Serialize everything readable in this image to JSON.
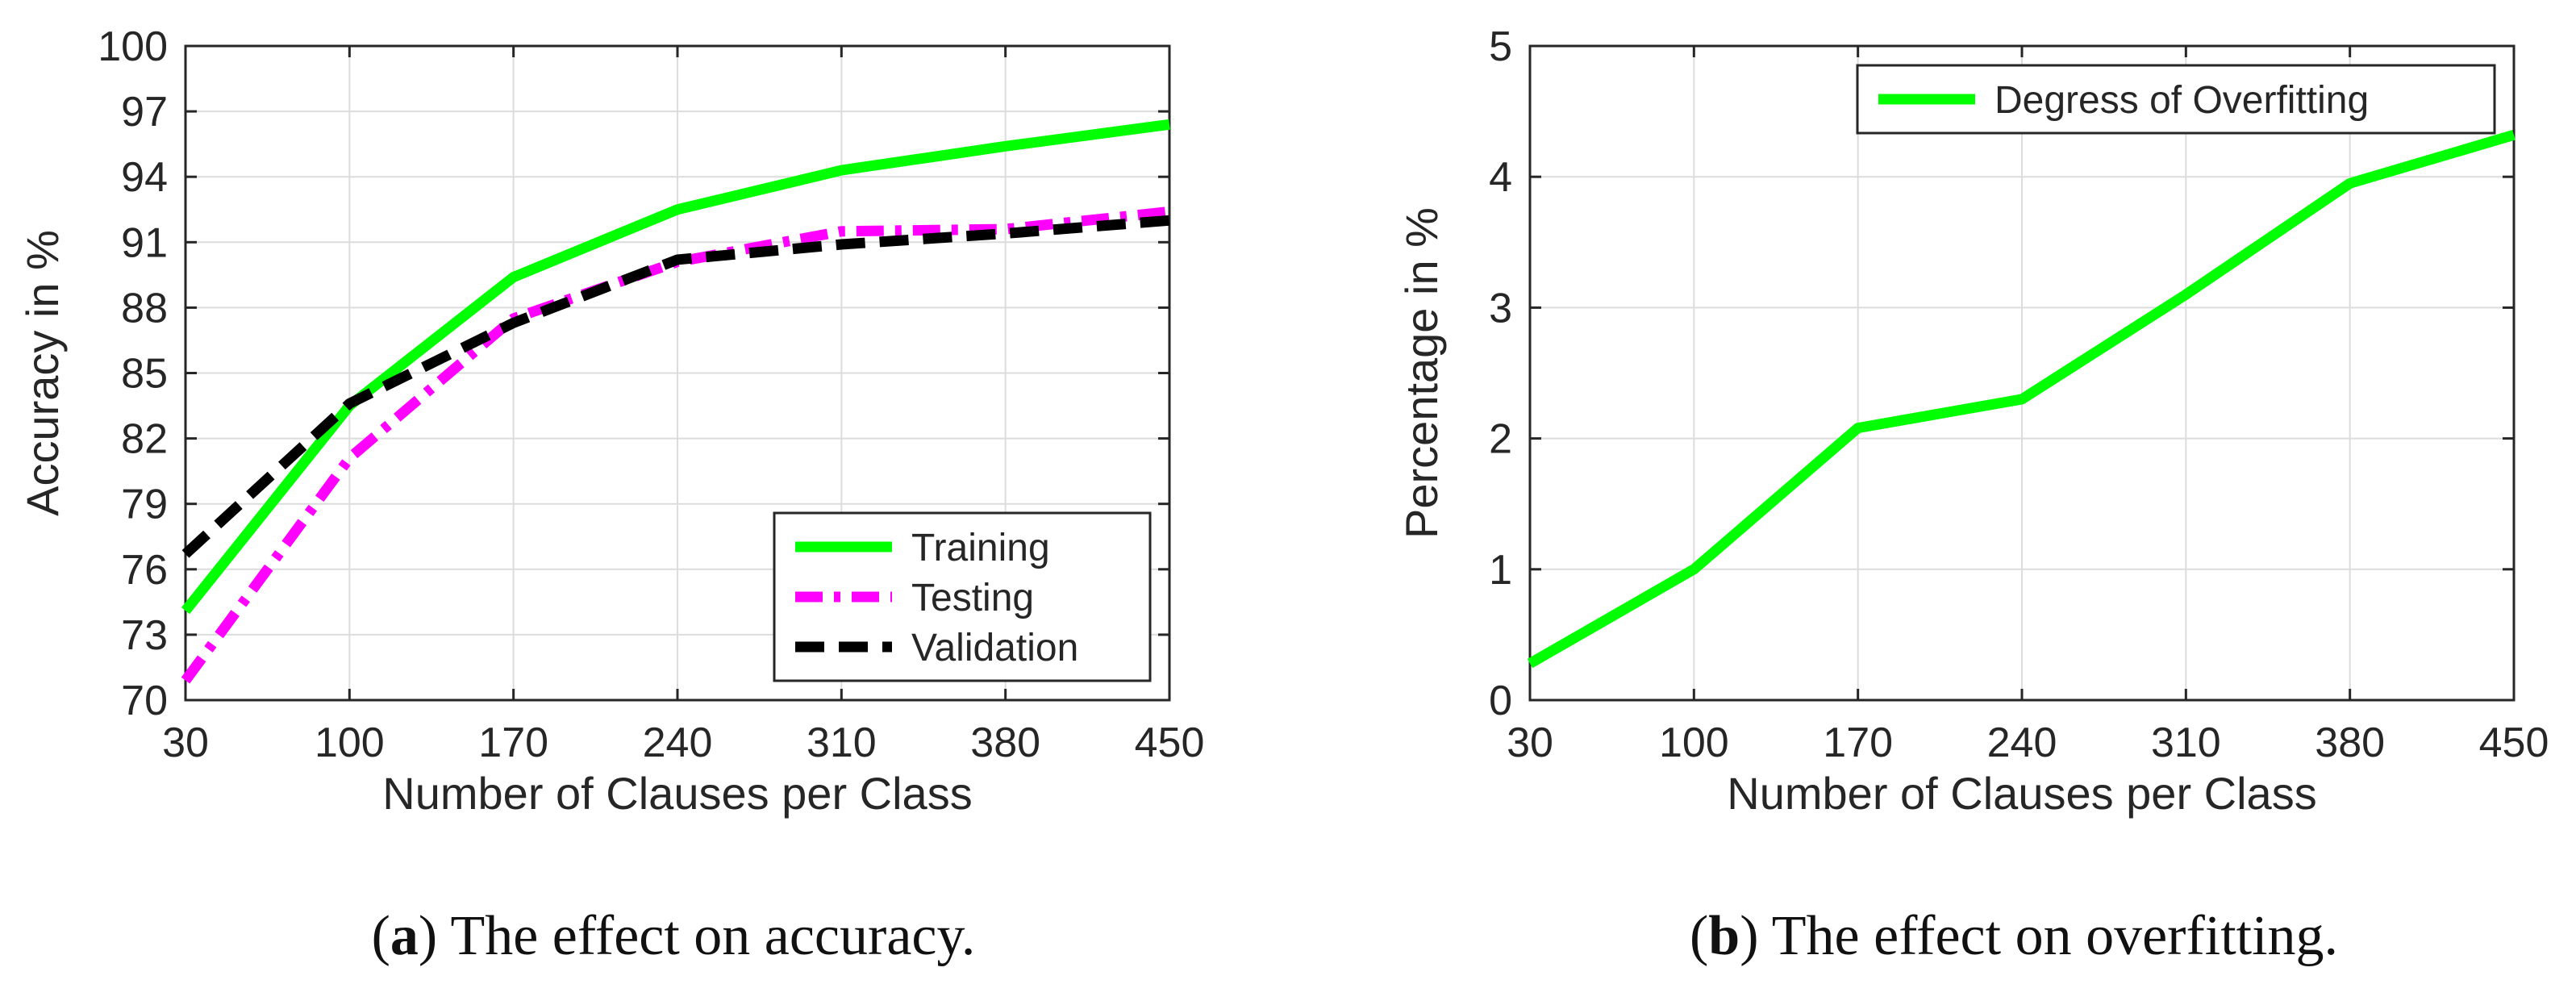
{
  "colors": {
    "training": "#00ff00",
    "testing": "#ff00ff",
    "validation": "#000000",
    "overfitting": "#00ff00"
  },
  "chart_data": [
    {
      "type": "line",
      "panel": "a",
      "xlabel": "Number of Clauses per Class",
      "ylabel": "Accuracy in %",
      "x": [
        30,
        100,
        170,
        240,
        310,
        380,
        450
      ],
      "x_ticks": [
        30,
        100,
        170,
        240,
        310,
        380,
        450
      ],
      "y_ticks": [
        70,
        73,
        76,
        79,
        82,
        85,
        88,
        91,
        94,
        97,
        100
      ],
      "xlim": [
        30,
        450
      ],
      "ylim": [
        70,
        100
      ],
      "grid": true,
      "legend_position": "bottom-right",
      "series": [
        {
          "name": "Training",
          "style": "solid",
          "color_key": "training",
          "values": [
            74.1,
            83.5,
            89.4,
            92.5,
            94.3,
            95.4,
            96.4
          ]
        },
        {
          "name": "Testing",
          "style": "dashdot",
          "color_key": "testing",
          "values": [
            70.9,
            81.1,
            87.5,
            90.1,
            91.5,
            91.6,
            92.4
          ]
        },
        {
          "name": "Validation",
          "style": "dashed",
          "color_key": "validation",
          "values": [
            76.7,
            83.6,
            87.3,
            90.2,
            90.9,
            91.4,
            92.0
          ]
        }
      ],
      "caption": {
        "label": "a",
        "text": "The effect on accuracy."
      }
    },
    {
      "type": "line",
      "panel": "b",
      "xlabel": "Number of Clauses per Class",
      "ylabel": "Percentage in %",
      "x": [
        30,
        100,
        170,
        240,
        310,
        380,
        450
      ],
      "x_ticks": [
        30,
        100,
        170,
        240,
        310,
        380,
        450
      ],
      "y_ticks": [
        0,
        1,
        2,
        3,
        4,
        5
      ],
      "xlim": [
        30,
        450
      ],
      "ylim": [
        0,
        5
      ],
      "grid": true,
      "legend_position": "top-right",
      "series": [
        {
          "name": "Degress of Overfitting",
          "style": "solid",
          "color_key": "overfitting",
          "values": [
            0.28,
            1.0,
            2.08,
            2.3,
            3.1,
            3.95,
            4.32
          ]
        }
      ],
      "caption": {
        "label": "b",
        "text": "The effect on overfitting."
      }
    }
  ]
}
